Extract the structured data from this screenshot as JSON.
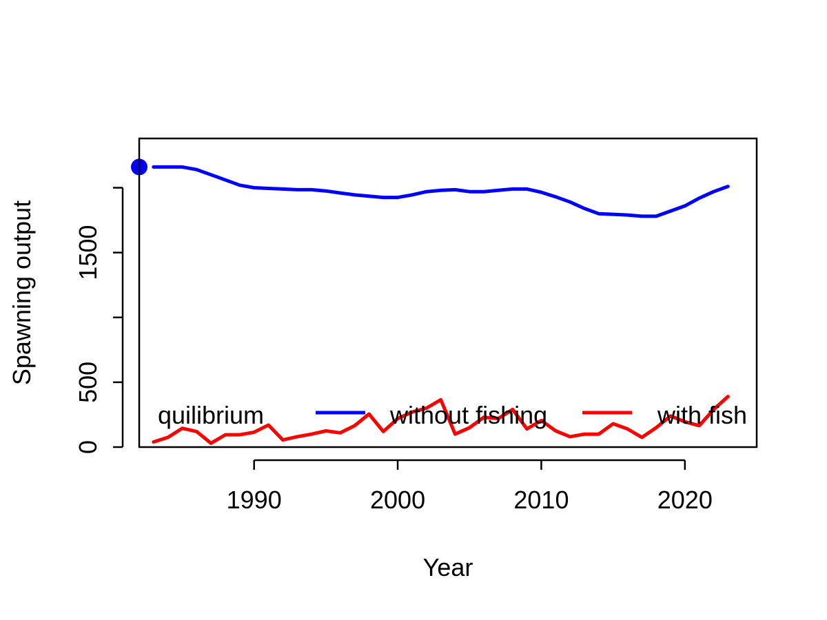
{
  "chart_data": {
    "type": "line",
    "xlabel": "Year",
    "ylabel": "Spawning output",
    "xlim": [
      1982,
      2025
    ],
    "ylim": [
      0,
      2380
    ],
    "x_ticks": [
      1990,
      2000,
      2010,
      2020
    ],
    "y_ticks": [
      0,
      500,
      1000,
      1500,
      2000
    ],
    "y_tick_labels": [
      "0",
      "500",
      "",
      "1500",
      ""
    ],
    "grid": false,
    "legend_position": "bottom",
    "colors": {
      "equilibrium": "#0000ff",
      "without_fishing": "#0000ff",
      "with_fishing": "#ff0000"
    },
    "legend": [
      {
        "label": "quilibrium",
        "style": "point",
        "color": "#0000ff"
      },
      {
        "label": "without fishing",
        "style": "line",
        "color": "#0000ff"
      },
      {
        "label": "with fish",
        "style": "line",
        "color": "#ff0000"
      }
    ],
    "series": [
      {
        "name": "equilibrium",
        "style": "point",
        "color": "#0000ff",
        "points": [
          {
            "x": 1982,
            "y": 2160
          }
        ]
      },
      {
        "name": "without fishing",
        "style": "line",
        "color": "#0000ff",
        "x": [
          1983,
          1984,
          1985,
          1986,
          1987,
          1988,
          1989,
          1990,
          1991,
          1992,
          1993,
          1994,
          1995,
          1996,
          1997,
          1998,
          1999,
          2000,
          2001,
          2002,
          2003,
          2004,
          2005,
          2006,
          2007,
          2008,
          2009,
          2010,
          2011,
          2012,
          2013,
          2014,
          2015,
          2016,
          2017,
          2018,
          2019,
          2020,
          2021,
          2022,
          2023
        ],
        "y": [
          2160,
          2160,
          2160,
          2140,
          2100,
          2060,
          2020,
          2000,
          1995,
          1990,
          1985,
          1985,
          1975,
          1960,
          1945,
          1935,
          1925,
          1925,
          1945,
          1970,
          1980,
          1985,
          1970,
          1970,
          1980,
          1990,
          1990,
          1965,
          1930,
          1890,
          1840,
          1800,
          1795,
          1790,
          1780,
          1780,
          1820,
          1860,
          1920,
          1970,
          2010
        ]
      },
      {
        "name": "with fishing",
        "style": "line",
        "color": "#ff0000",
        "x": [
          1983,
          1984,
          1985,
          1986,
          1987,
          1988,
          1989,
          1990,
          1991,
          1992,
          1993,
          1994,
          1995,
          1996,
          1997,
          1998,
          1999,
          2000,
          2001,
          2002,
          2003,
          2004,
          2005,
          2006,
          2007,
          2008,
          2009,
          2010,
          2011,
          2012,
          2013,
          2014,
          2015,
          2016,
          2017,
          2018,
          2019,
          2020,
          2021,
          2022,
          2023
        ],
        "y": [
          40,
          75,
          145,
          120,
          30,
          95,
          95,
          115,
          170,
          55,
          80,
          100,
          125,
          110,
          165,
          255,
          120,
          220,
          270,
          300,
          365,
          100,
          150,
          230,
          220,
          290,
          140,
          205,
          125,
          80,
          100,
          100,
          180,
          140,
          75,
          150,
          240,
          195,
          165,
          290,
          390
        ]
      }
    ]
  }
}
